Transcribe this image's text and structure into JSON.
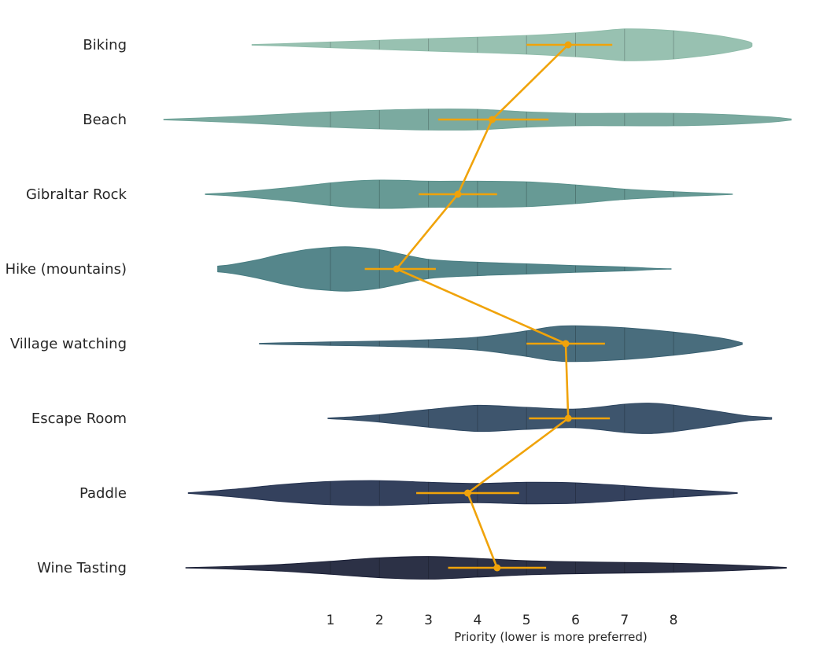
{
  "chart_data": {
    "type": "violin",
    "xlabel": "Priority (lower is more preferred)",
    "ylabel": "",
    "x_ticks": [
      1,
      2,
      3,
      4,
      5,
      6,
      7,
      8
    ],
    "xlim": [
      -2.85,
      10.05
    ],
    "grid": false,
    "categories": [
      "Biking",
      "Beach",
      "Gibraltar Rock",
      "Hike (mountains)",
      "Village watching",
      "Escape Room",
      "Paddle",
      "Wine Tasting"
    ],
    "colors": [
      "#8fbcaa",
      "#70a398",
      "#5a918c",
      "#477c81",
      "#3a6172",
      "#2e4761",
      "#23314f",
      "#1a1f36"
    ],
    "summary_color": "#f0a30a",
    "means": [
      5.85,
      4.3,
      3.6,
      2.35,
      5.8,
      5.85,
      3.8,
      4.4
    ],
    "ci_low": [
      5.0,
      3.2,
      2.8,
      1.7,
      5.0,
      5.05,
      2.75,
      3.4
    ],
    "ci_high": [
      6.75,
      5.45,
      4.4,
      3.15,
      6.6,
      6.7,
      4.85,
      5.4
    ],
    "violins": [
      {
        "name": "Biking",
        "y": [
          -0.6,
          0.0,
          1.0,
          2.0,
          3.0,
          4.0,
          5.0,
          6.0,
          6.5,
          7.0,
          7.5,
          8.0,
          8.5,
          9.0,
          9.5,
          9.6
        ],
        "density": [
          0.01,
          0.04,
          0.1,
          0.16,
          0.22,
          0.27,
          0.33,
          0.42,
          0.49,
          0.56,
          0.55,
          0.5,
          0.41,
          0.3,
          0.13,
          0.05
        ]
      },
      {
        "name": "Beach",
        "y": [
          -2.4,
          -1.0,
          0.0,
          1.0,
          2.0,
          3.0,
          4.0,
          5.0,
          6.0,
          7.0,
          8.0,
          9.0,
          10.0,
          10.4
        ],
        "density": [
          0.01,
          0.1,
          0.19,
          0.27,
          0.33,
          0.37,
          0.36,
          0.27,
          0.22,
          0.22,
          0.22,
          0.18,
          0.09,
          0.02
        ]
      },
      {
        "name": "Gibraltar Rock",
        "y": [
          -1.55,
          -1.0,
          0.0,
          1.0,
          1.5,
          2.0,
          2.5,
          3.0,
          4.0,
          5.0,
          6.0,
          7.0,
          8.0,
          9.0,
          9.2
        ],
        "density": [
          0.01,
          0.06,
          0.21,
          0.4,
          0.47,
          0.5,
          0.49,
          0.46,
          0.46,
          0.44,
          0.33,
          0.18,
          0.09,
          0.02,
          0.005
        ]
      },
      {
        "name": "Hike (mountains)",
        "y": [
          -1.3,
          -1.0,
          -0.5,
          0.0,
          0.5,
          1.0,
          1.4,
          2.0,
          3.0,
          4.0,
          5.0,
          6.0,
          7.0,
          7.6,
          7.95
        ],
        "density": [
          0.1,
          0.16,
          0.32,
          0.52,
          0.68,
          0.76,
          0.78,
          0.68,
          0.34,
          0.24,
          0.18,
          0.12,
          0.07,
          0.02,
          0.005
        ]
      },
      {
        "name": "Village watching",
        "y": [
          -0.45,
          0.0,
          1.0,
          2.0,
          3.0,
          4.0,
          5.0,
          5.5,
          6.0,
          7.0,
          8.0,
          9.0,
          9.4
        ],
        "density": [
          0.01,
          0.03,
          0.06,
          0.09,
          0.14,
          0.23,
          0.45,
          0.59,
          0.63,
          0.56,
          0.41,
          0.19,
          0.03
        ]
      },
      {
        "name": "Escape Room",
        "y": [
          0.95,
          1.5,
          2.0,
          3.0,
          4.0,
          5.0,
          6.0,
          7.0,
          7.5,
          8.0,
          9.0,
          9.5,
          10.0
        ],
        "density": [
          0.01,
          0.06,
          0.13,
          0.31,
          0.46,
          0.39,
          0.33,
          0.5,
          0.54,
          0.47,
          0.22,
          0.09,
          0.03
        ]
      },
      {
        "name": "Paddle",
        "y": [
          -1.9,
          -1.0,
          0.0,
          1.0,
          2.0,
          3.0,
          4.0,
          5.0,
          6.0,
          7.0,
          8.0,
          9.0,
          9.3
        ],
        "density": [
          0.01,
          0.13,
          0.3,
          0.41,
          0.44,
          0.38,
          0.34,
          0.38,
          0.36,
          0.26,
          0.15,
          0.05,
          0.01
        ]
      },
      {
        "name": "Wine Tasting",
        "y": [
          -1.95,
          -1.0,
          0.0,
          1.0,
          2.0,
          3.0,
          4.0,
          5.0,
          6.0,
          7.0,
          8.0,
          9.0,
          10.0,
          10.3
        ],
        "density": [
          0.005,
          0.05,
          0.12,
          0.23,
          0.35,
          0.4,
          0.33,
          0.25,
          0.21,
          0.19,
          0.16,
          0.11,
          0.04,
          0.01
        ]
      }
    ]
  }
}
